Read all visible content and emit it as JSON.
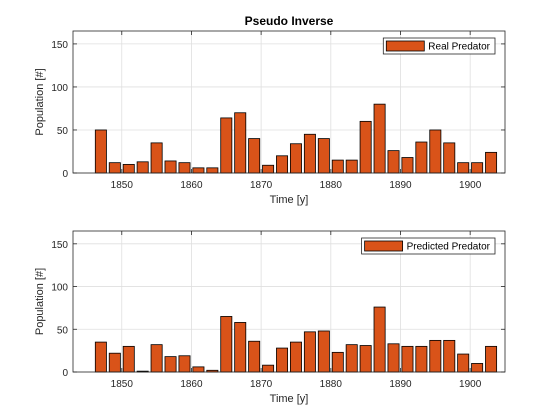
{
  "chart_data": [
    {
      "type": "bar",
      "title": "Pseudo Inverse",
      "xlabel": "Time [y]",
      "ylabel": "Population [#]",
      "xlim": [
        1843,
        1905
      ],
      "ylim": [
        0,
        165
      ],
      "xticks": [
        1850,
        1860,
        1870,
        1880,
        1890,
        1900
      ],
      "yticks": [
        0,
        50,
        100,
        150
      ],
      "grid": true,
      "legend_position": "top-right",
      "bar_color": "#D95319",
      "series": [
        {
          "name": "Real Predator",
          "x": [
            1847,
            1849,
            1851,
            1853,
            1855,
            1857,
            1859,
            1861,
            1863,
            1865,
            1867,
            1869,
            1871,
            1873,
            1875,
            1877,
            1879,
            1881,
            1883,
            1885,
            1887,
            1889,
            1891,
            1893,
            1895,
            1897,
            1899,
            1901,
            1903
          ],
          "values": [
            50,
            12,
            10,
            13,
            35,
            14,
            12,
            6,
            6,
            64,
            70,
            40,
            9,
            20,
            34,
            45,
            40,
            15,
            15,
            60,
            80,
            26,
            18,
            36,
            50,
            35,
            12,
            12,
            24
          ]
        }
      ]
    },
    {
      "type": "bar",
      "title": "",
      "xlabel": "Time [y]",
      "ylabel": "Population [#]",
      "xlim": [
        1843,
        1905
      ],
      "ylim": [
        0,
        165
      ],
      "xticks": [
        1850,
        1860,
        1870,
        1880,
        1890,
        1900
      ],
      "yticks": [
        0,
        50,
        100,
        150
      ],
      "grid": true,
      "legend_position": "top-right",
      "bar_color": "#D95319",
      "series": [
        {
          "name": "Predicted Predator",
          "x": [
            1847,
            1849,
            1851,
            1853,
            1855,
            1857,
            1859,
            1861,
            1863,
            1865,
            1867,
            1869,
            1871,
            1873,
            1875,
            1877,
            1879,
            1881,
            1883,
            1885,
            1887,
            1889,
            1891,
            1893,
            1895,
            1897,
            1899,
            1901,
            1903
          ],
          "values": [
            35,
            22,
            30,
            1,
            32,
            18,
            19,
            6,
            2,
            65,
            58,
            36,
            8,
            28,
            35,
            47,
            48,
            23,
            32,
            31,
            76,
            33,
            30,
            30,
            37,
            37,
            21,
            10,
            30
          ]
        }
      ]
    }
  ]
}
